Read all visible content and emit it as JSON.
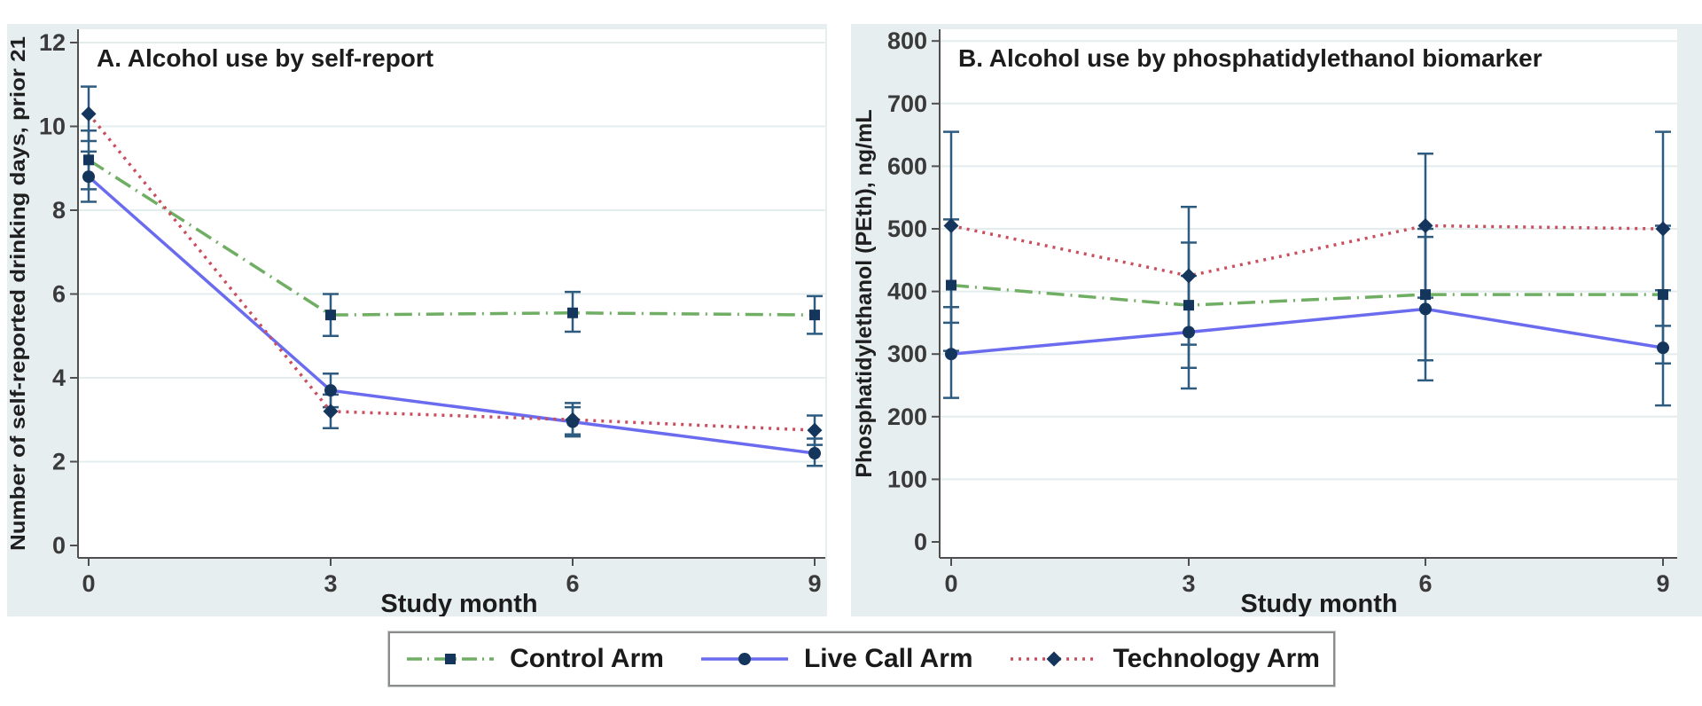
{
  "colors": {
    "panel_bg": "#e7eef0",
    "plot_bg": "#ffffff",
    "grid": "#e3edee",
    "axis": "#4f4f4f",
    "tick_text": "#3a3a3a",
    "marker": "#14365c",
    "error_bar": "#2e5b80",
    "control_green": "#6fae63",
    "live_call_blue": "#6b6bef",
    "technology_red": "#c94f5f"
  },
  "legend": {
    "items": [
      {
        "label": "Control Arm"
      },
      {
        "label": "Live Call Arm"
      },
      {
        "label": "Technology Arm"
      }
    ]
  },
  "chart_data": [
    {
      "type": "line",
      "panel": "A",
      "title": "A. Alcohol use by self-report",
      "xlabel": "Study month",
      "ylabel": "Number of self-reported drinking days, prior 21",
      "x": [
        0,
        3,
        6,
        9
      ],
      "xticklabels": [
        "0",
        "3",
        "6",
        "9"
      ],
      "yticks": [
        0,
        2,
        4,
        6,
        8,
        10,
        12
      ],
      "ylim": [
        0,
        12.4
      ],
      "grid": true,
      "legend_position": "bottom-shared",
      "series": [
        {
          "name": "Control Arm",
          "color": "#6fae63",
          "dash": "20,7,2,7",
          "marker": "square",
          "values": [
            9.2,
            5.5,
            5.55,
            5.5
          ],
          "lo": [
            8.5,
            5.0,
            5.1,
            5.05
          ],
          "hi": [
            9.9,
            6.0,
            6.05,
            5.95
          ]
        },
        {
          "name": "Live Call Arm",
          "color": "#6b6bef",
          "dash": "",
          "marker": "circle",
          "values": [
            8.8,
            3.7,
            2.95,
            2.2
          ],
          "lo": [
            8.2,
            3.3,
            2.6,
            1.9
          ],
          "hi": [
            9.4,
            4.1,
            3.3,
            2.55
          ]
        },
        {
          "name": "Technology Arm",
          "color": "#c94f5f",
          "dash": "3,6",
          "marker": "diamond",
          "values": [
            10.3,
            3.2,
            3.0,
            2.75
          ],
          "lo": [
            9.65,
            2.8,
            2.65,
            2.4
          ],
          "hi": [
            10.95,
            3.6,
            3.4,
            3.1
          ]
        }
      ]
    },
    {
      "type": "line",
      "panel": "B",
      "title": "B. Alcohol use by phosphatidylethanol biomarker",
      "xlabel": "Study month",
      "ylabel": "Phosphatidylethanol (PEth), ng/mL",
      "x": [
        0,
        3,
        6,
        9
      ],
      "xticklabels": [
        "0",
        "3",
        "6",
        "9"
      ],
      "yticks": [
        0,
        100,
        200,
        300,
        400,
        500,
        600,
        700,
        800
      ],
      "ylim": [
        0,
        827
      ],
      "grid": true,
      "legend_position": "bottom-shared",
      "series": [
        {
          "name": "Control Arm",
          "color": "#6fae63",
          "dash": "20,7,2,7",
          "marker": "square",
          "values": [
            410,
            378,
            395,
            395
          ],
          "lo": [
            305,
            278,
            290,
            285
          ],
          "hi": [
            515,
            478,
            500,
            505
          ]
        },
        {
          "name": "Live Call Arm",
          "color": "#6b6bef",
          "dash": "",
          "marker": "circle",
          "values": [
            300,
            335,
            372,
            310
          ],
          "lo": [
            230,
            245,
            258,
            218
          ],
          "hi": [
            375,
            425,
            487,
            402
          ]
        },
        {
          "name": "Technology Arm",
          "color": "#c94f5f",
          "dash": "3,6",
          "marker": "diamond",
          "values": [
            505,
            425,
            505,
            500
          ],
          "lo": [
            350,
            315,
            390,
            345
          ],
          "hi": [
            655,
            535,
            620,
            655
          ]
        }
      ]
    }
  ]
}
